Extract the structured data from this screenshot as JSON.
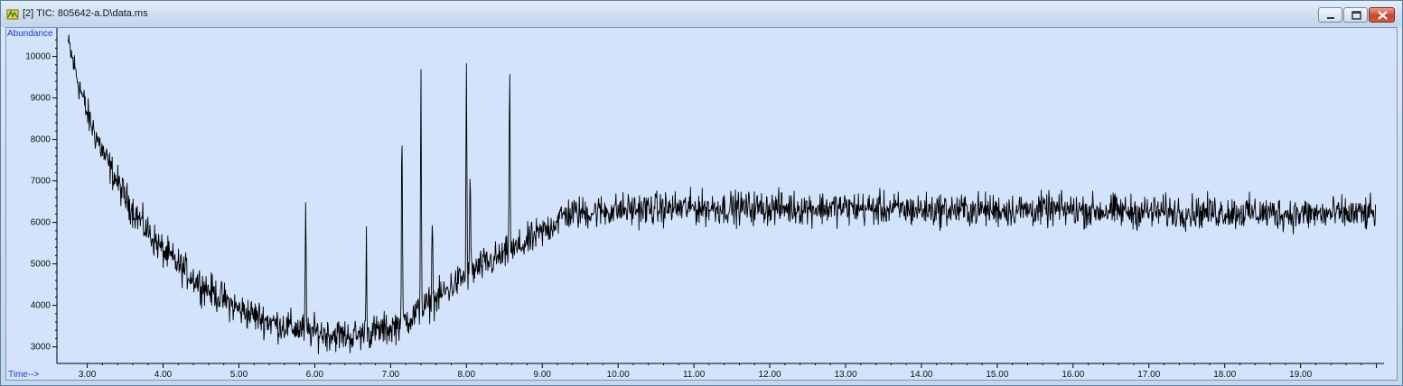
{
  "window": {
    "title": "[2] TIC: 805642-a.D\\data.ms",
    "buttons": [
      "minimize",
      "maximize",
      "close"
    ],
    "icons": {
      "app": "chromatogram-app-icon",
      "minimize": "minimize-icon",
      "maximize": "maximize-icon",
      "close": "close-icon"
    }
  },
  "colors": {
    "plot_background": "#d2e3fb",
    "axis_label": "#1f3ec4",
    "trace": "#000000",
    "close_button": "#c8442a"
  },
  "chart_data": {
    "type": "line",
    "ylabel": "Abundance",
    "xlabel": "Time-->",
    "xlim": [
      2.6,
      20.1
    ],
    "ylim": [
      2600,
      10600
    ],
    "x_ticks": [
      "3.00",
      "4.00",
      "5.00",
      "6.00",
      "7.00",
      "8.00",
      "9.00",
      "10.00",
      "11.00",
      "12.00",
      "13.00",
      "14.00",
      "15.00",
      "16.00",
      "17.00",
      "18.00",
      "19.00"
    ],
    "y_ticks": [
      "3000",
      "4000",
      "5000",
      "6000",
      "7000",
      "8000",
      "9000",
      "10000"
    ],
    "grid": false,
    "baseline": {
      "x": [
        2.75,
        3.0,
        3.25,
        3.5,
        3.75,
        4.0,
        4.5,
        5.0,
        5.5,
        6.0,
        6.5,
        7.0,
        7.3,
        7.6,
        7.9,
        8.2,
        8.6,
        9.0,
        9.3,
        10.0,
        11.0,
        12.0,
        13.0,
        14.0,
        15.0,
        16.0,
        17.0,
        18.0,
        19.0,
        20.0
      ],
      "y": [
        10300,
        8600,
        7500,
        6600,
        5900,
        5300,
        4500,
        3900,
        3550,
        3350,
        3250,
        3450,
        3750,
        4150,
        4600,
        4950,
        5300,
        5750,
        6200,
        6300,
        6350,
        6350,
        6350,
        6300,
        6300,
        6300,
        6250,
        6250,
        6200,
        6200
      ]
    },
    "noise_amplitude": 250,
    "peaks": [
      {
        "x": 5.88,
        "y": 6400
      },
      {
        "x": 6.68,
        "y": 5800
      },
      {
        "x": 7.15,
        "y": 8500
      },
      {
        "x": 7.4,
        "y": 9850
      },
      {
        "x": 7.55,
        "y": 6400
      },
      {
        "x": 8.0,
        "y": 9800
      },
      {
        "x": 8.05,
        "y": 7400
      },
      {
        "x": 8.57,
        "y": 10200
      }
    ]
  }
}
